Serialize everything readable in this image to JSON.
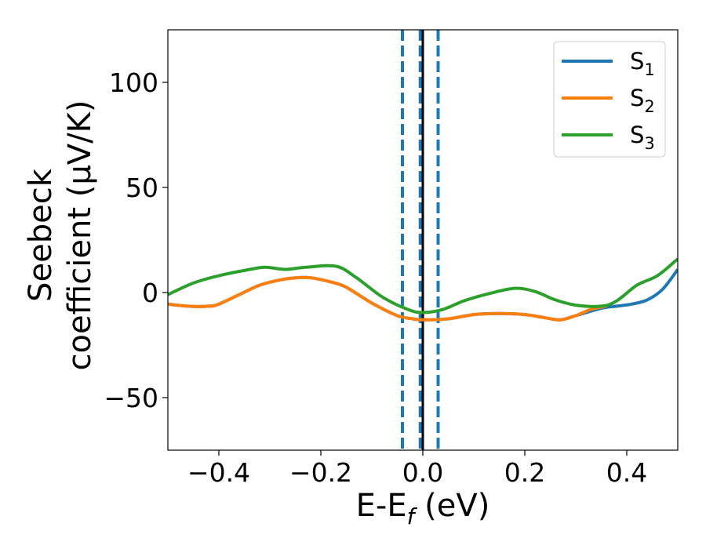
{
  "chart_data": {
    "type": "line",
    "title": "",
    "xlabel": {
      "main": "E-E",
      "sub": "f",
      "rest": " (eV)"
    },
    "ylabel": {
      "line1": "Seebeck",
      "line2": "coefficient  (μV/K)"
    },
    "xlim": [
      -0.5,
      0.5
    ],
    "ylim": [
      -75,
      125
    ],
    "xticks": [
      {
        "value": -0.4,
        "label": "−0.4"
      },
      {
        "value": -0.2,
        "label": "−0.2"
      },
      {
        "value": 0.0,
        "label": "0.0"
      },
      {
        "value": 0.2,
        "label": "0.2"
      },
      {
        "value": 0.4,
        "label": "0.4"
      }
    ],
    "yticks": [
      {
        "value": -50,
        "label": "−50"
      },
      {
        "value": 0,
        "label": "0"
      },
      {
        "value": 50,
        "label": "50"
      },
      {
        "value": 100,
        "label": "100"
      }
    ],
    "grid": false,
    "legend_position": "top-right",
    "series": [
      {
        "name": "S",
        "sub": "1",
        "color": "#1f77b4",
        "x": [
          -0.5,
          -0.46,
          -0.42,
          -0.4,
          -0.36,
          -0.32,
          -0.28,
          -0.25,
          -0.22,
          -0.18,
          -0.15,
          -0.1,
          -0.05,
          -0.02,
          0.0,
          0.05,
          0.1,
          0.15,
          0.2,
          0.24,
          0.27,
          0.3,
          0.35,
          0.38,
          0.41,
          0.44,
          0.47,
          0.5
        ],
        "y": [
          -5.5,
          -6.5,
          -6.5,
          -5.5,
          -1.0,
          3.5,
          6.0,
          7.0,
          7.0,
          5.0,
          2.5,
          -5.0,
          -11.0,
          -12.5,
          -13.0,
          -12.5,
          -10.5,
          -10.0,
          -10.5,
          -12.0,
          -13.0,
          -11.0,
          -7.5,
          -6.5,
          -5.5,
          -3.5,
          1.5,
          11.0
        ]
      },
      {
        "name": "S",
        "sub": "2",
        "color": "#ff7f0e",
        "x": [
          -0.5,
          -0.46,
          -0.42,
          -0.4,
          -0.36,
          -0.32,
          -0.28,
          -0.25,
          -0.22,
          -0.18,
          -0.15,
          -0.1,
          -0.05,
          -0.02,
          0.0,
          0.05,
          0.1,
          0.15,
          0.2,
          0.24,
          0.27,
          0.3,
          0.33,
          0.36
        ],
        "y": [
          -5.5,
          -6.5,
          -6.5,
          -5.5,
          -1.0,
          3.5,
          6.0,
          7.0,
          7.0,
          5.0,
          2.5,
          -5.0,
          -11.0,
          -12.5,
          -13.0,
          -12.5,
          -10.5,
          -10.0,
          -10.5,
          -12.0,
          -13.0,
          -11.0,
          -8.0,
          -6.5
        ]
      },
      {
        "name": "S",
        "sub": "3",
        "color": "#2ca02c",
        "x": [
          -0.5,
          -0.45,
          -0.4,
          -0.35,
          -0.31,
          -0.27,
          -0.23,
          -0.17,
          -0.13,
          -0.08,
          -0.03,
          0.0,
          0.04,
          0.08,
          0.13,
          0.18,
          0.22,
          0.26,
          0.3,
          0.35,
          0.38,
          0.42,
          0.46,
          0.5
        ],
        "y": [
          -1.0,
          4.5,
          8.0,
          10.5,
          12.0,
          11.0,
          12.0,
          12.5,
          7.0,
          -2.0,
          -8.0,
          -9.5,
          -8.0,
          -4.0,
          -0.5,
          2.0,
          0.5,
          -3.5,
          -6.0,
          -6.5,
          -4.0,
          3.5,
          8.0,
          16.0
        ]
      }
    ],
    "vlines": [
      {
        "x": -0.04,
        "color": "#1f77b4",
        "style": "dashed"
      },
      {
        "x": -0.005,
        "color": "#1f77b4",
        "style": "dashed"
      },
      {
        "x": 0.03,
        "color": "#1f77b4",
        "style": "dashed"
      },
      {
        "x": 0.0,
        "color": "#000000",
        "style": "solid"
      }
    ]
  }
}
